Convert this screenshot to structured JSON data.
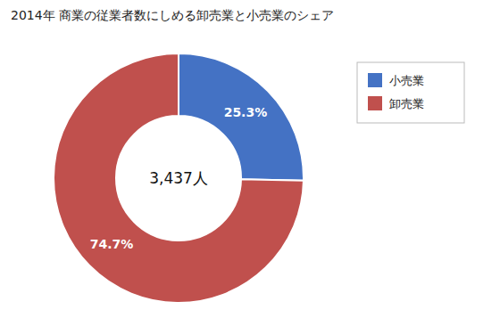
{
  "chart_data": {
    "type": "donut",
    "title": "2014年 商業の従業者数にしめる卸売業と小売業のシェア",
    "categories": [
      "小売業",
      "卸売業"
    ],
    "values": [
      25.3,
      74.7
    ],
    "value_labels": [
      "25.3%",
      "74.7%"
    ],
    "colors": [
      "#4472C4",
      "#C0504D"
    ],
    "annotations": [
      "3,437人"
    ],
    "data_labels": true,
    "legend": "right"
  }
}
